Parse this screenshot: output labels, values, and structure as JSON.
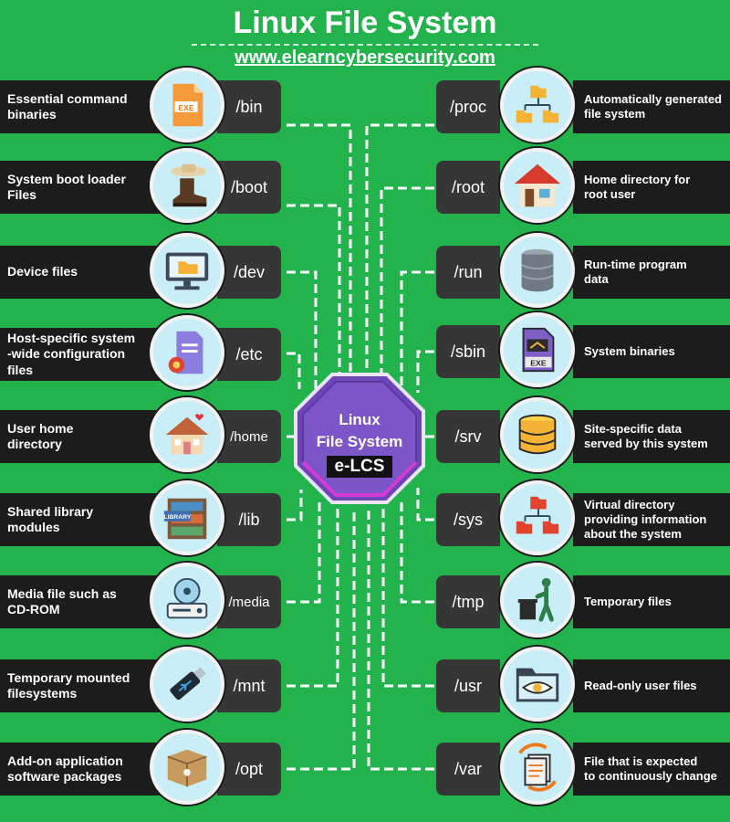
{
  "header": {
    "title": "Linux File System",
    "url": "www.elearncybersecurity.com"
  },
  "center": {
    "line1": "Linux",
    "line2": "File System",
    "logo": "e-LCS"
  },
  "left_items": [
    {
      "path": "/bin",
      "desc": "Essential command\n binaries",
      "icon": "exe-file-icon"
    },
    {
      "path": "/boot",
      "desc": "System  boot  loader\nFiles",
      "icon": "boot-icon"
    },
    {
      "path": "/dev",
      "desc": "Device files",
      "icon": "computer-folder-icon"
    },
    {
      "path": "/etc",
      "desc": "Host-specific system\n-wide configuration\nfiles",
      "icon": "config-file-icon"
    },
    {
      "path": "/home",
      "desc": "User home\ndirectory",
      "icon": "house-icon"
    },
    {
      "path": "/lib",
      "desc": "Shared library\nmodules",
      "icon": "library-icon"
    },
    {
      "path": "/media",
      "desc": "Media file such as\nCD-ROM",
      "icon": "cd-rom-icon"
    },
    {
      "path": "/mnt",
      "desc": "Temporary mounted\nfilesystems",
      "icon": "usb-drive-icon"
    },
    {
      "path": "/opt",
      "desc": "Add-on application\nsoftware packages",
      "icon": "package-icon"
    }
  ],
  "right_items": [
    {
      "path": "/proc",
      "desc": "Automatically generated\nfile system",
      "icon": "folder-tree-icon"
    },
    {
      "path": "/root",
      "desc": "Home directory for\nroot user",
      "icon": "root-house-icon"
    },
    {
      "path": "/run",
      "desc": "Run-time program\ndata",
      "icon": "database-icon"
    },
    {
      "path": "/sbin",
      "desc": "System binaries",
      "icon": "exe-binary-icon"
    },
    {
      "path": "/srv",
      "desc": "Site-specific data\nserved by this system",
      "icon": "server-data-icon"
    },
    {
      "path": "/sys",
      "desc": "Virtual directory\nproviding information\nabout the system",
      "icon": "virtual-folder-tree-icon"
    },
    {
      "path": "/tmp",
      "desc": "Temporary files",
      "icon": "trash-person-icon"
    },
    {
      "path": "/usr",
      "desc": "Read-only user files",
      "icon": "eye-folder-icon"
    },
    {
      "path": "/var",
      "desc": "File that is expected\nto continuously change",
      "icon": "changing-files-icon"
    }
  ]
}
